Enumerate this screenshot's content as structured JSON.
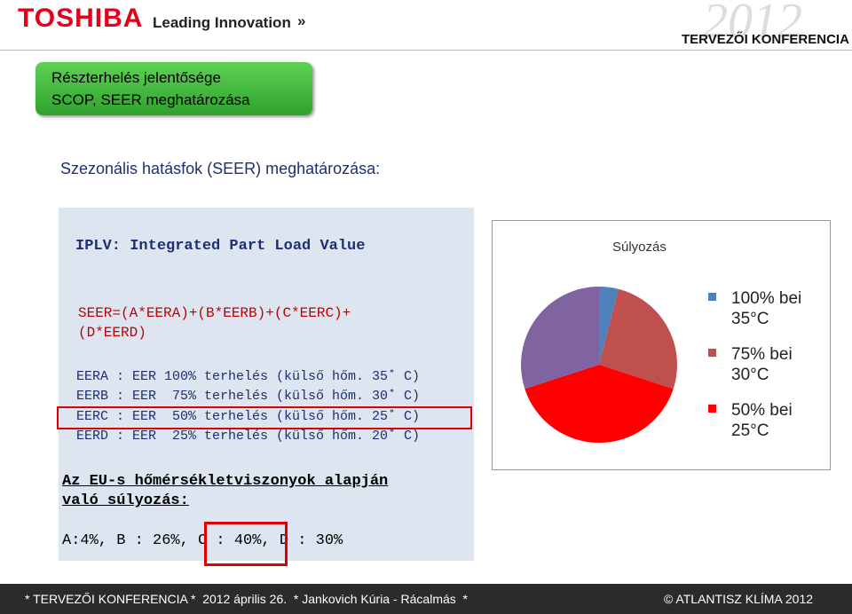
{
  "header": {
    "logo": "TOSHIBA",
    "tagline": "Leading Innovation",
    "year": "2012",
    "event": "TERVEZŐI KONFERENCIA"
  },
  "title": {
    "lines": [
      "Részterhelés jelentősége",
      "SCOP, SEER meghatározása"
    ]
  },
  "subtitle": "Szezonális hatásfok (SEER) meghatározása:",
  "panel": {
    "heading": "IPLV: Integrated Part Load Value",
    "formula": [
      "SEER=(A*EERA)+(B*EERB)+(C*EERC)+",
      "(D*EERD)"
    ],
    "definitions": [
      "EERA : EER 100% terhelés (külső hőm. 35˚ C)",
      "EERB : EER  75% terhelés (külső hőm. 30˚ C)",
      "EERC : EER  50% terhelés (külső hőm. 25˚ C)",
      "EERD : EER  25% terhelés (külső hőm. 20˚ C)"
    ],
    "weighting_heading": [
      "Az EU-s hőmérsékletviszonyok alapján",
      "való súlyozás:"
    ],
    "weights": "A:4%, B : 26%, C : 40%, D : 30%"
  },
  "chart_data": {
    "type": "pie",
    "title": "Súlyozás",
    "categories": [
      "100% bei 35°C",
      "75% bei 30°C",
      "50% bei 25°C",
      null
    ],
    "values": [
      4,
      26,
      40,
      30
    ],
    "colors": [
      "#4f81bd",
      "#c0504d",
      "#ff0000",
      "#8064a2"
    ]
  },
  "footer": {
    "left": "* TERVEZŐI KONFERENCIA *  2012 április 26.  * Jankovich Kúria - Rácalmás  *",
    "right": "© ATLANTISZ KLÍMA 2012"
  }
}
